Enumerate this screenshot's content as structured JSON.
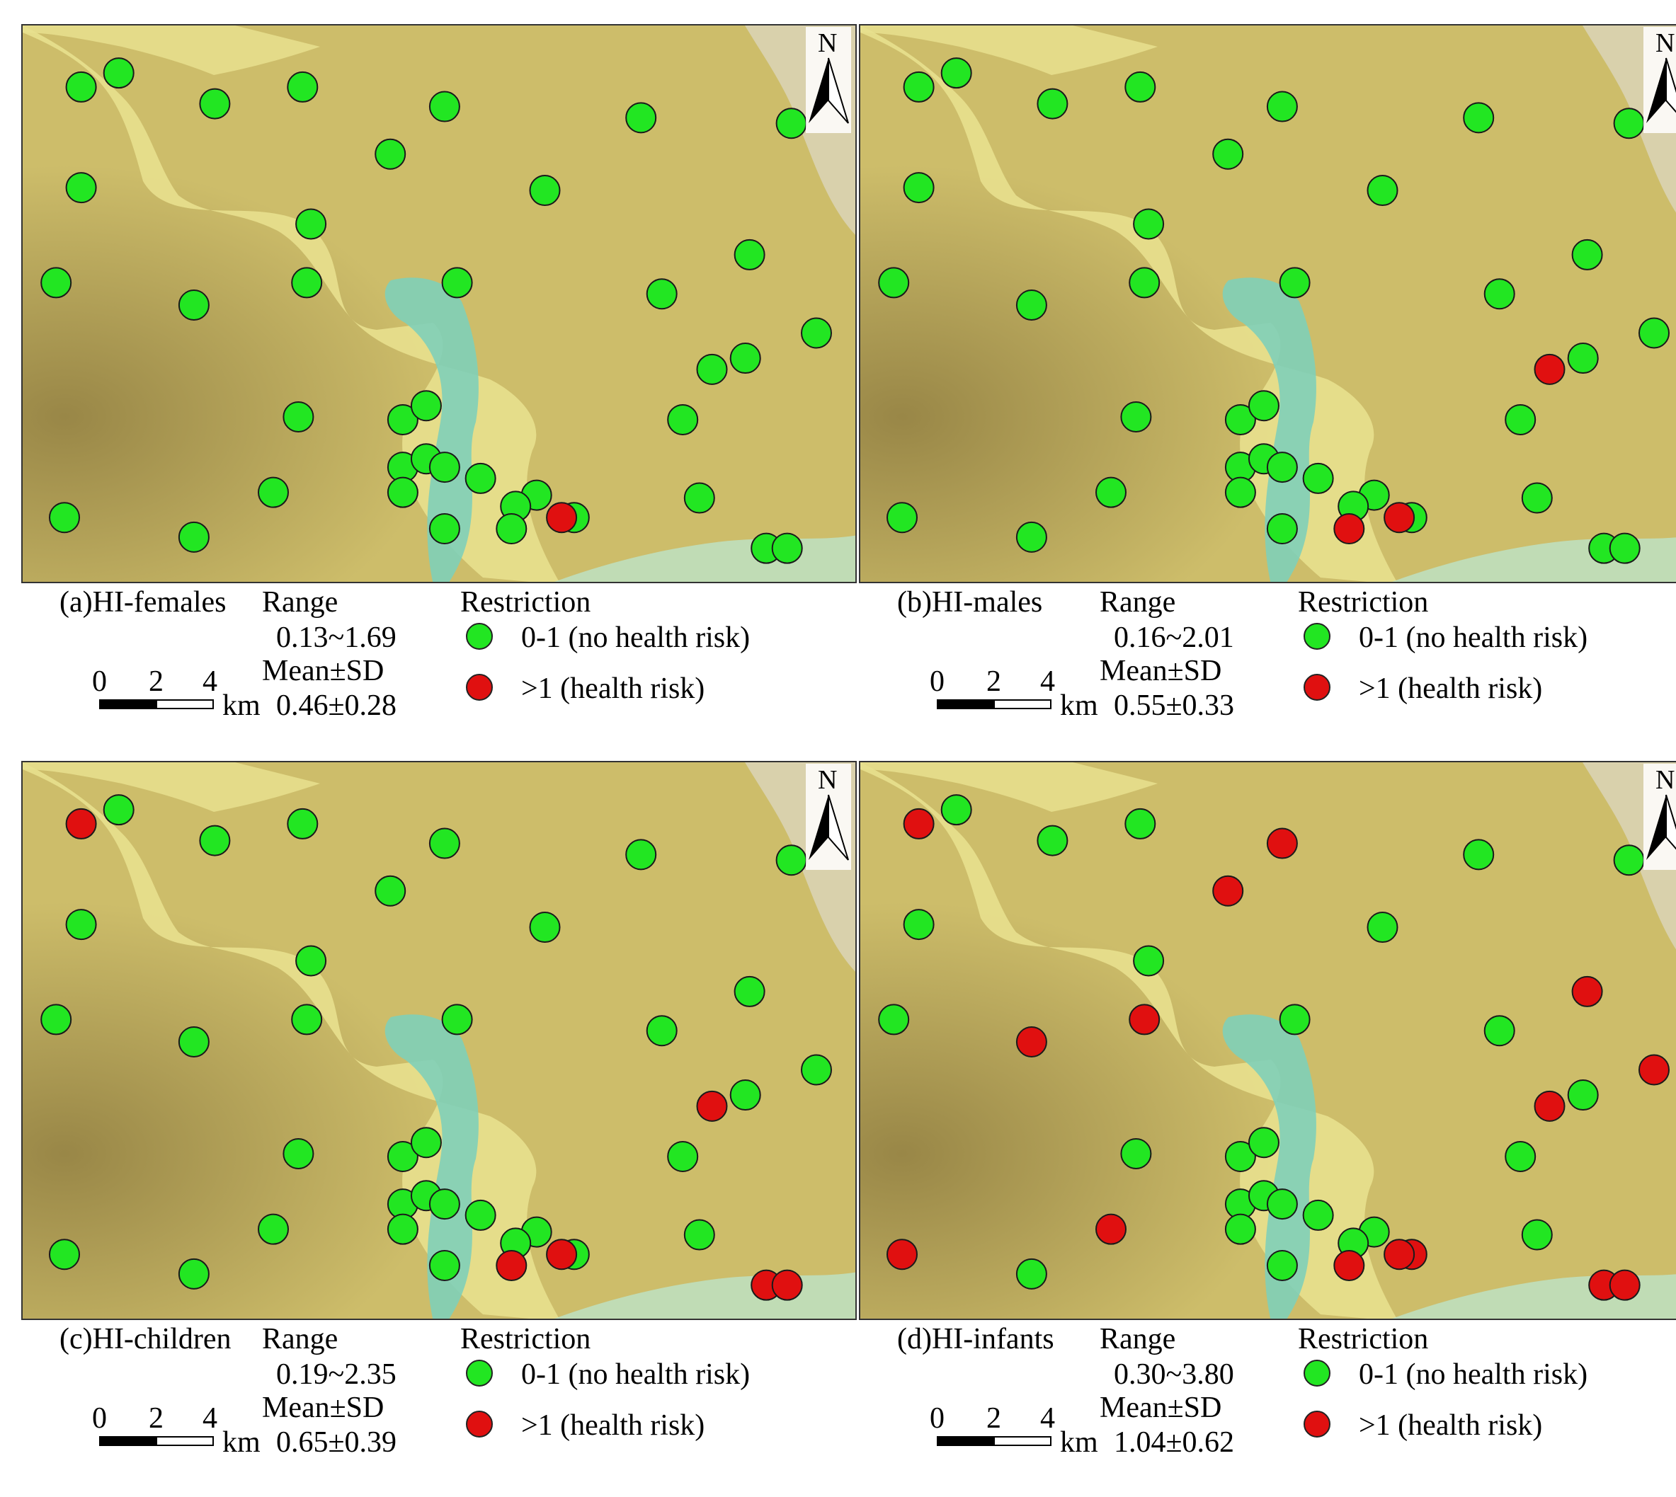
{
  "compass_label": "N",
  "legend_common": {
    "range_heading": "Range",
    "stat_heading": "Mean±SD",
    "restriction_heading": "Restriction",
    "class_low": "0-1 (no health risk)",
    "class_high": ">1  (health risk)",
    "scale_ticks": [
      "0",
      "2",
      "4"
    ],
    "scale_unit": "km"
  },
  "colors": {
    "no_risk": "#22e622",
    "risk": "#e01010",
    "river": "#7fcfb8",
    "plain": "#e8e08e",
    "ridge": "#8c7a3c"
  },
  "sample_points": [
    [
      0.07,
      0.11
    ],
    [
      0.115,
      0.085
    ],
    [
      0.23,
      0.14
    ],
    [
      0.335,
      0.11
    ],
    [
      0.505,
      0.145
    ],
    [
      0.74,
      0.165
    ],
    [
      0.92,
      0.175
    ],
    [
      0.44,
      0.23
    ],
    [
      0.07,
      0.29
    ],
    [
      0.625,
      0.295
    ],
    [
      0.345,
      0.355
    ],
    [
      0.87,
      0.41
    ],
    [
      0.04,
      0.46
    ],
    [
      0.34,
      0.46
    ],
    [
      0.52,
      0.46
    ],
    [
      0.205,
      0.5
    ],
    [
      0.765,
      0.48
    ],
    [
      0.95,
      0.55
    ],
    [
      0.865,
      0.595
    ],
    [
      0.825,
      0.615
    ],
    [
      0.33,
      0.7
    ],
    [
      0.455,
      0.705
    ],
    [
      0.483,
      0.68
    ],
    [
      0.79,
      0.705
    ],
    [
      0.455,
      0.79
    ],
    [
      0.483,
      0.775
    ],
    [
      0.505,
      0.79
    ],
    [
      0.455,
      0.835
    ],
    [
      0.3,
      0.835
    ],
    [
      0.548,
      0.81
    ],
    [
      0.615,
      0.84
    ],
    [
      0.59,
      0.86
    ],
    [
      0.05,
      0.88
    ],
    [
      0.205,
      0.915
    ],
    [
      0.505,
      0.9
    ],
    [
      0.585,
      0.9
    ],
    [
      0.66,
      0.88
    ],
    [
      0.645,
      0.88
    ],
    [
      0.81,
      0.845
    ],
    [
      0.89,
      0.935
    ],
    [
      0.915,
      0.935
    ]
  ],
  "panels": [
    {
      "label": "(a)HI-females",
      "range": "0.13~1.69",
      "mean_sd": "0.46±0.28",
      "risk_points": [
        37
      ]
    },
    {
      "label": "(b)HI-males",
      "range": "0.16~2.01",
      "mean_sd": "0.55±0.33",
      "risk_points": [
        19,
        35,
        37
      ]
    },
    {
      "label": "(c)HI-children",
      "range": "0.19~2.35",
      "mean_sd": "0.65±0.39",
      "risk_points": [
        0,
        19,
        35,
        37,
        39,
        40
      ]
    },
    {
      "label": "(d)HI-infants",
      "range": "0.30~3.80",
      "mean_sd": "1.04±0.62",
      "risk_points": [
        0,
        4,
        7,
        11,
        13,
        15,
        17,
        19,
        28,
        32,
        35,
        36,
        37,
        39,
        40
      ]
    }
  ]
}
